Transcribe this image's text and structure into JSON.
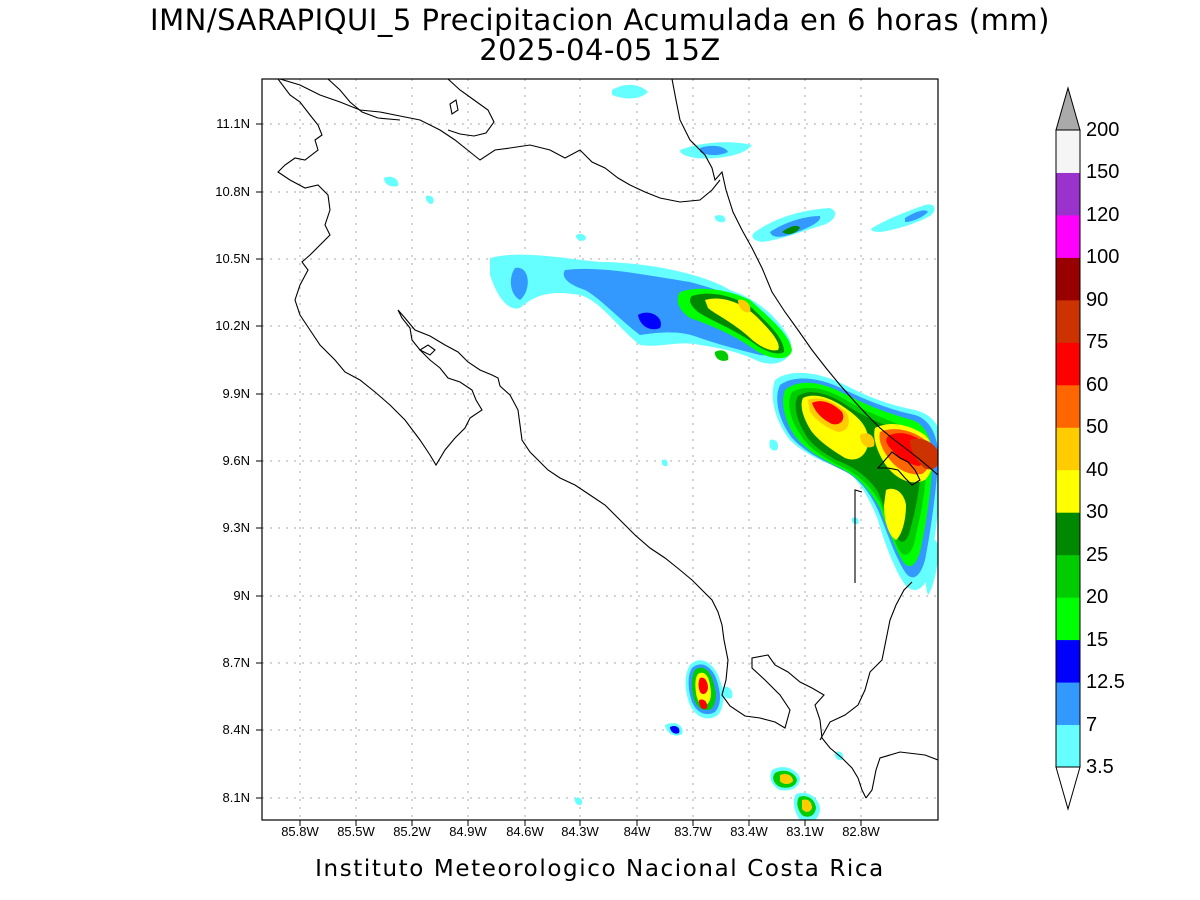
{
  "title": {
    "line1": "IMN/SARAPIQUI_5 Precipitacion Acumulada en 6 horas (mm)",
    "line2": "2025-04-05 15Z"
  },
  "footer": "Instituto Meteorologico Nacional Costa Rica",
  "lat_labels": [
    "11.1N",
    "10.8N",
    "10.5N",
    "10.2N",
    "9.9N",
    "9.6N",
    "9.3N",
    "9N",
    "8.7N",
    "8.4N",
    "8.1N"
  ],
  "lon_labels": [
    "85.8W",
    "85.5W",
    "85.2W",
    "84.9W",
    "84.6W",
    "84.3W",
    "84W",
    "83.7W",
    "83.4W",
    "83.1W",
    "82.8W"
  ],
  "colorbar": {
    "levels": [
      "3.5",
      "7",
      "12.5",
      "15",
      "20",
      "25",
      "30",
      "40",
      "50",
      "60",
      "75",
      "90",
      "100",
      "120",
      "150",
      "200"
    ],
    "colors": [
      "#ffffff",
      "#66ffff",
      "#3399ff",
      "#0000ff",
      "#00ff00",
      "#00cc00",
      "#008800",
      "#ffff00",
      "#ffcc00",
      "#ff6600",
      "#ff0000",
      "#cc3300",
      "#990000",
      "#ff00ff",
      "#9933cc",
      "#f5f5f5",
      "#aaaaaa"
    ]
  },
  "palette": {
    "light_blue": "#66ffff",
    "blue": "#3399ff",
    "dark_blue": "#0000ff",
    "light_green": "#00ff00",
    "green": "#00cc00",
    "dark_green": "#008800",
    "yellow": "#ffff00",
    "gold": "#ffcc00",
    "orange": "#ff6600",
    "red": "#ff0000"
  }
}
